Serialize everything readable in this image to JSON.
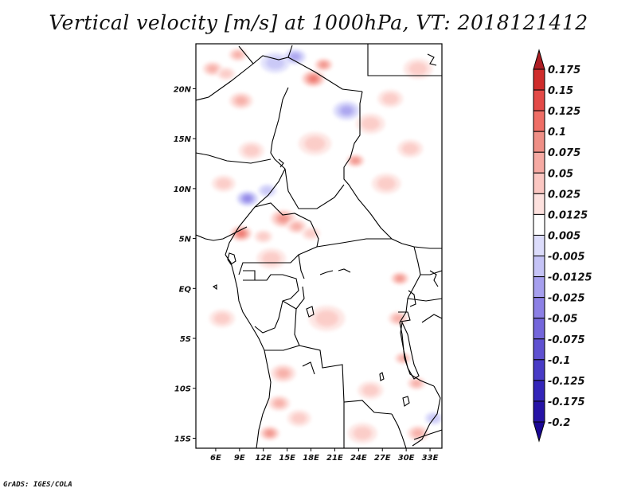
{
  "title": "Vertical velocity [m/s] at 1000hPa, VT: 2018121412",
  "footer": "GrADS: IGES/COLA",
  "map": {
    "region": "Central Africa",
    "variable": "vertical velocity",
    "units": "m/s",
    "level": "1000hPa",
    "valid_time": "2018121412",
    "lon_range": [
      3.5,
      34.5
    ],
    "lat_range": [
      -16,
      24.5
    ],
    "x_ticks": [
      {
        "lon": 6,
        "label": "6E"
      },
      {
        "lon": 9,
        "label": "9E"
      },
      {
        "lon": 12,
        "label": "12E"
      },
      {
        "lon": 15,
        "label": "15E"
      },
      {
        "lon": 18,
        "label": "18E"
      },
      {
        "lon": 21,
        "label": "21E"
      },
      {
        "lon": 24,
        "label": "24E"
      },
      {
        "lon": 27,
        "label": "27E"
      },
      {
        "lon": 30,
        "label": "30E"
      },
      {
        "lon": 33,
        "label": "33E"
      }
    ],
    "y_ticks": [
      {
        "lat": 20,
        "label": "20N"
      },
      {
        "lat": 15,
        "label": "15N"
      },
      {
        "lat": 10,
        "label": "10N"
      },
      {
        "lat": 5,
        "label": "5N"
      },
      {
        "lat": 0,
        "label": "EQ"
      },
      {
        "lat": -5,
        "label": "5S"
      },
      {
        "lat": -10,
        "label": "10S"
      },
      {
        "lat": -15,
        "label": "15S"
      }
    ],
    "field_blobs": [
      {
        "lon": 5.6,
        "lat": 22.0,
        "r": 1.1,
        "sign": 1,
        "mag": 2
      },
      {
        "lon": 8.8,
        "lat": 23.4,
        "r": 1.0,
        "sign": 1,
        "mag": 2
      },
      {
        "lon": 13.5,
        "lat": 22.6,
        "r": 1.6,
        "sign": -1,
        "mag": 1
      },
      {
        "lon": 16.0,
        "lat": 23.2,
        "r": 1.2,
        "sign": -1,
        "mag": 2
      },
      {
        "lon": 18.3,
        "lat": 21.0,
        "r": 1.3,
        "sign": 1,
        "mag": 4
      },
      {
        "lon": 19.6,
        "lat": 22.4,
        "r": 1.0,
        "sign": 1,
        "mag": 3
      },
      {
        "lon": 9.2,
        "lat": 18.8,
        "r": 1.3,
        "sign": 1,
        "mag": 2
      },
      {
        "lon": 7.3,
        "lat": 21.5,
        "r": 1.0,
        "sign": 1,
        "mag": 1
      },
      {
        "lon": 22.5,
        "lat": 17.8,
        "r": 1.5,
        "sign": -1,
        "mag": 2
      },
      {
        "lon": 23.6,
        "lat": 12.8,
        "r": 1.0,
        "sign": 1,
        "mag": 3
      },
      {
        "lon": 25.5,
        "lat": 16.5,
        "r": 1.6,
        "sign": 1,
        "mag": 1
      },
      {
        "lon": 28.0,
        "lat": 19.0,
        "r": 1.4,
        "sign": 1,
        "mag": 1
      },
      {
        "lon": 30.5,
        "lat": 14.0,
        "r": 1.4,
        "sign": 1,
        "mag": 1
      },
      {
        "lon": 31.5,
        "lat": 22.0,
        "r": 1.6,
        "sign": 1,
        "mag": 1
      },
      {
        "lon": 10.5,
        "lat": 13.8,
        "r": 1.4,
        "sign": 1,
        "mag": 1
      },
      {
        "lon": 10.0,
        "lat": 9.0,
        "r": 1.2,
        "sign": -1,
        "mag": 3
      },
      {
        "lon": 7.0,
        "lat": 10.5,
        "r": 1.3,
        "sign": 1,
        "mag": 1
      },
      {
        "lon": 12.5,
        "lat": 9.8,
        "r": 1.0,
        "sign": -1,
        "mag": 1
      },
      {
        "lon": 9.2,
        "lat": 5.5,
        "r": 1.2,
        "sign": 1,
        "mag": 4
      },
      {
        "lon": 14.5,
        "lat": 7.0,
        "r": 1.4,
        "sign": 1,
        "mag": 3
      },
      {
        "lon": 16.2,
        "lat": 6.2,
        "r": 1.1,
        "sign": 1,
        "mag": 2
      },
      {
        "lon": 18.0,
        "lat": 5.5,
        "r": 1.0,
        "sign": 1,
        "mag": 1
      },
      {
        "lon": 12.0,
        "lat": 5.2,
        "r": 1.0,
        "sign": 1,
        "mag": 1
      },
      {
        "lon": 13.0,
        "lat": 3.0,
        "r": 1.6,
        "sign": 1,
        "mag": 1
      },
      {
        "lon": 29.2,
        "lat": 1.0,
        "r": 1.0,
        "sign": 1,
        "mag": 3
      },
      {
        "lon": 29.0,
        "lat": -3.0,
        "r": 1.1,
        "sign": 1,
        "mag": 2
      },
      {
        "lon": 29.6,
        "lat": -7.0,
        "r": 0.9,
        "sign": 1,
        "mag": 2
      },
      {
        "lon": 31.3,
        "lat": -9.5,
        "r": 1.0,
        "sign": 1,
        "mag": 2
      },
      {
        "lon": 14.5,
        "lat": -8.5,
        "r": 1.4,
        "sign": 1,
        "mag": 2
      },
      {
        "lon": 14.0,
        "lat": -11.5,
        "r": 1.2,
        "sign": 1,
        "mag": 2
      },
      {
        "lon": 12.8,
        "lat": -14.5,
        "r": 1.1,
        "sign": 1,
        "mag": 3
      },
      {
        "lon": 16.5,
        "lat": -13.0,
        "r": 1.3,
        "sign": 1,
        "mag": 1
      },
      {
        "lon": 25.5,
        "lat": -10.2,
        "r": 1.4,
        "sign": 1,
        "mag": 1
      },
      {
        "lon": 24.5,
        "lat": -14.5,
        "r": 1.6,
        "sign": 1,
        "mag": 1
      },
      {
        "lon": 33.5,
        "lat": -13.0,
        "r": 1.0,
        "sign": -1,
        "mag": 1
      },
      {
        "lon": 31.5,
        "lat": -14.5,
        "r": 1.2,
        "sign": 1,
        "mag": 2
      },
      {
        "lon": 6.8,
        "lat": -3.0,
        "r": 1.4,
        "sign": 1,
        "mag": 1
      },
      {
        "lon": 20.0,
        "lat": -3.0,
        "r": 2.0,
        "sign": 1,
        "mag": 1
      },
      {
        "lon": 18.5,
        "lat": 14.5,
        "r": 1.8,
        "sign": 1,
        "mag": 1
      },
      {
        "lon": 27.5,
        "lat": 10.5,
        "r": 1.6,
        "sign": 1,
        "mag": 1
      }
    ]
  },
  "colorbar": {
    "colors": [
      "#ad1e24",
      "#cf2c2b",
      "#e34a47",
      "#ef6e66",
      "#ef8f86",
      "#f6aaa3",
      "#fbc7c2",
      "#fde1de",
      "#ffffff",
      "#dcdcfb",
      "#c5c3f6",
      "#a69fee",
      "#8c80e5",
      "#7466db",
      "#5f51d1",
      "#483bc6",
      "#3325b9",
      "#2613a6",
      "#1a0794"
    ],
    "labels": [
      "0.175",
      "0.15",
      "0.125",
      "0.1",
      "0.075",
      "0.05",
      "0.025",
      "0.0125",
      "0.005",
      "-0.005",
      "-0.0125",
      "-0.025",
      "-0.05",
      "-0.075",
      "-0.1",
      "-0.125",
      "-0.175",
      "-0.2"
    ]
  }
}
